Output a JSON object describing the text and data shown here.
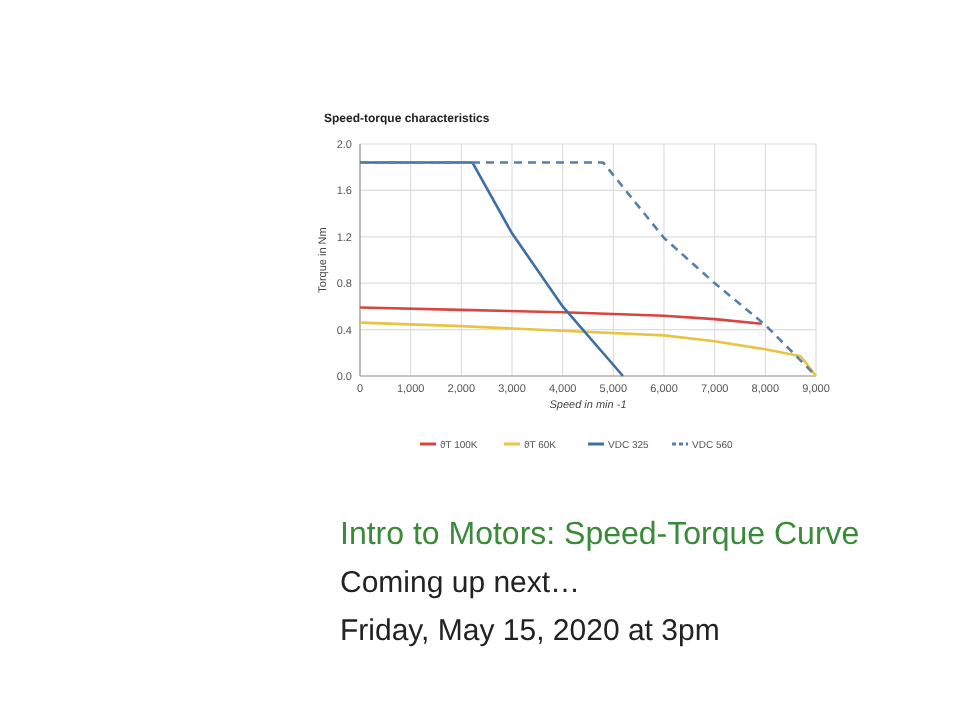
{
  "chart_data": {
    "type": "line",
    "title": "Speed-torque characteristics",
    "xlabel": "Speed in min -1",
    "ylabel": "Torque in Nm",
    "annotations": [
      "Intro to Motors: Speed-Torque Curve",
      "Coming up next…",
      "Friday, May 15, 2020 at 3pm"
    ],
    "xlim": [
      0,
      9000
    ],
    "ylim": [
      0,
      2
    ],
    "xticks": [
      0,
      {
        "value": 1000,
        "label": "1,000"
      },
      {
        "value": 2000,
        "label": "2,000"
      },
      {
        "value": 3000,
        "label": "3,000"
      },
      {
        "value": 4000,
        "label": "4,000"
      },
      {
        "value": 5000,
        "label": "5,000"
      },
      {
        "value": 6000,
        "label": "6,000"
      },
      {
        "value": 7000,
        "label": "7,000"
      },
      {
        "value": 8000,
        "label": "8,000"
      },
      {
        "value": 9000,
        "label": "9,000"
      }
    ],
    "yticks": [
      {
        "value": 0,
        "label": "0.0"
      },
      {
        "value": 0.4,
        "label": "0.4"
      },
      {
        "value": 0.8,
        "label": "0.8"
      },
      {
        "value": 1.2,
        "label": "1.2"
      },
      {
        "value": 1.6,
        "label": "1.6"
      },
      {
        "value": 2,
        "label": "2.0"
      }
    ],
    "grid": true,
    "legend": "bottom",
    "marker": "none",
    "series": [
      {
        "name": "ϑT 100K",
        "color": "#d9453f",
        "x": [
          0,
          2000,
          4000,
          6000,
          7000,
          7930
        ],
        "values": [
          0.59,
          0.57,
          0.55,
          0.52,
          0.49,
          0.45
        ]
      },
      {
        "name": "ϑT 60K",
        "color": "#e6c444",
        "x": [
          0,
          2000,
          4000,
          6000,
          7000,
          8000,
          8700,
          9000
        ],
        "values": [
          0.46,
          0.43,
          0.39,
          0.35,
          0.3,
          0.23,
          0.17,
          0
        ]
      },
      {
        "name": "VDC 325",
        "color": "#3b6fa6",
        "x": [
          0,
          2220,
          3000,
          4000,
          5190
        ],
        "values": [
          1.84,
          1.84,
          1.23,
          0.6,
          0
        ]
      },
      {
        "name": "VDC 560",
        "color": "#5580ad",
        "line_style": "dashed",
        "x": [
          0,
          4800,
          6000,
          7000,
          8000,
          9000
        ],
        "values": [
          1.84,
          1.84,
          1.19,
          0.8,
          0.44,
          0
        ]
      }
    ]
  }
}
